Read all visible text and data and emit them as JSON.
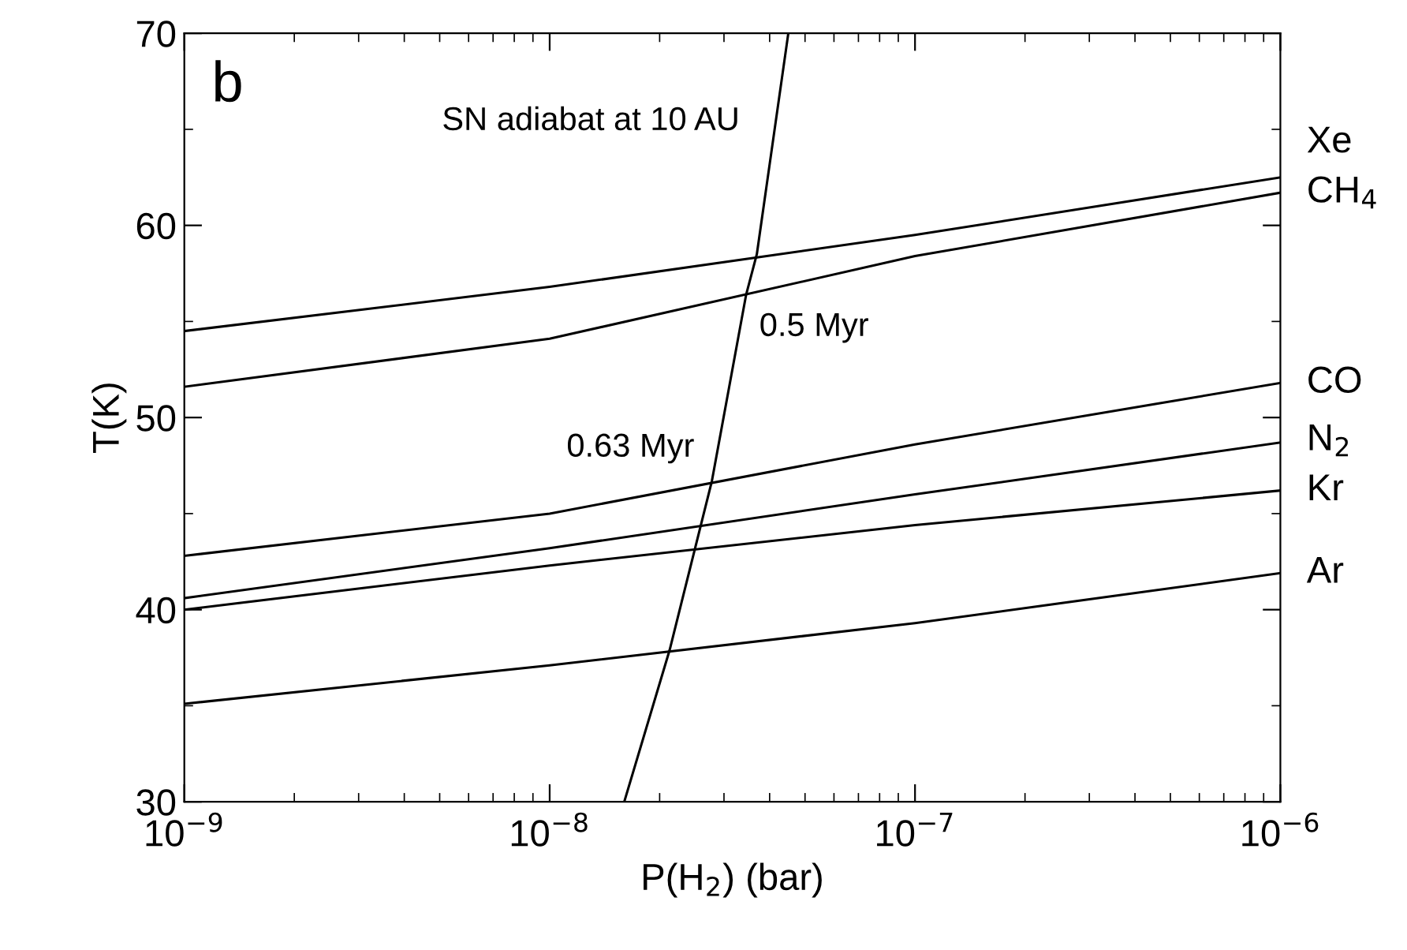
{
  "chart_data": {
    "type": "line",
    "xlabel": "P(H$_{2}$) (bar)",
    "ylabel": "T(K)",
    "log": "x",
    "xlim": [
      1e-09,
      1e-06
    ],
    "ylim": [
      30,
      70
    ],
    "xticks": [
      {
        "value": 1e-09,
        "label": "10$^{−9}$"
      },
      {
        "value": 1e-08,
        "label": "10$^{−8}$"
      },
      {
        "value": 1e-07,
        "label": "10$^{−7}$"
      },
      {
        "value": 1e-06,
        "label": "10$^{−6}$"
      }
    ],
    "yticks": [
      30,
      40,
      50,
      60,
      70
    ],
    "grid": false,
    "legend": "right",
    "marker": "none",
    "line_style": "solid",
    "x": [
      1e-09,
      1e-08,
      1e-07,
      1e-06
    ],
    "series": [
      {
        "name": "Xe",
        "color": "#000000",
        "values": [
          54.5,
          56.8,
          59.5,
          62.5
        ]
      },
      {
        "name": "CH$_{4}$",
        "color": "#000000",
        "values": [
          51.6,
          54.1,
          58.4,
          61.7
        ]
      },
      {
        "name": "CO",
        "color": "#000000",
        "values": [
          42.8,
          45.0,
          48.6,
          51.8
        ]
      },
      {
        "name": "N$_{2}$",
        "color": "#000000",
        "values": [
          40.6,
          43.2,
          46.0,
          48.7
        ]
      },
      {
        "name": "Kr",
        "color": "#000000",
        "values": [
          40.0,
          42.3,
          44.4,
          46.2
        ]
      },
      {
        "name": "Ar",
        "color": "#000000",
        "values": [
          35.1,
          37.1,
          39.3,
          41.9
        ]
      },
      {
        "color": "#000000",
        "x": [
          1.6e-08,
          2.13e-08,
          2.78e-08,
          3.45e-08,
          3.69e-08,
          4.5e-08
        ],
        "values": [
          30,
          37.9,
          46.7,
          56.4,
          58.5,
          70
        ]
      }
    ],
    "annotations": [
      "b",
      "SN adiabat at 10 AU",
      {
        "text": "0.5 Myr",
        "x": 3.45e-08,
        "y": 56.4
      },
      {
        "text": "0.63 Myr",
        "x": 2.78e-08,
        "y": 46.7
      }
    ]
  }
}
